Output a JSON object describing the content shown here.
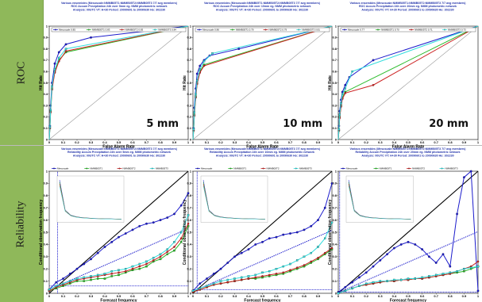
{
  "rows": [
    {
      "label": "ROC"
    },
    {
      "label": "Reliability"
    }
  ],
  "colors": {
    "sidebar": "#8fb85a",
    "title": "#2233aa",
    "series": [
      "#1c1ccc",
      "#2bbb2b",
      "#cc2222",
      "#33dddd"
    ]
  },
  "legend_series": [
    "Mesoscale",
    "NMMB05T1",
    "NMMB05T2",
    "NMMB05T3"
  ],
  "chart_data": [
    {
      "type": "line",
      "panel": "roc",
      "title_lines": [
        "Various ensembles  (Mesoscale:NMMB05T1:NMMB05T2:NMMB05T3 7/7 avg members)",
        "ROC  Accum Precipitation 24h over 5mm  eg. NMM photometric network",
        "Analysis: 00UTC  VT: H+30  Period: 20090601 to 20090630  Ho: 302230"
      ],
      "xlabel": "False Alarm Rate",
      "ylabel": "Hit Rate",
      "xlim": [
        0,
        1
      ],
      "ylim": [
        0,
        1
      ],
      "threshold_label": "5 mm",
      "legend": [
        "Mesoscale 0.85",
        "NMMB05T1 0.83",
        "NMMB05T2 0.83",
        "NMMB05T3 0.84"
      ],
      "series": [
        {
          "x": [
            0,
            0.005,
            0.01,
            0.02,
            0.04,
            0.07,
            0.12,
            0.3,
            1
          ],
          "y": [
            0,
            0.12,
            0.3,
            0.5,
            0.67,
            0.77,
            0.84,
            0.9,
            1
          ]
        },
        {
          "x": [
            0,
            0.005,
            0.01,
            0.02,
            0.04,
            0.07,
            0.12,
            1
          ],
          "y": [
            0,
            0.1,
            0.25,
            0.45,
            0.6,
            0.7,
            0.77,
            1
          ]
        },
        {
          "x": [
            0,
            0.005,
            0.01,
            0.02,
            0.04,
            0.07,
            0.12,
            1
          ],
          "y": [
            0,
            0.1,
            0.24,
            0.44,
            0.59,
            0.69,
            0.78,
            1
          ]
        },
        {
          "x": [
            0,
            0.005,
            0.01,
            0.02,
            0.04,
            0.07,
            0.12,
            1
          ],
          "y": [
            0,
            0.11,
            0.26,
            0.47,
            0.62,
            0.72,
            0.8,
            1
          ]
        }
      ]
    },
    {
      "type": "line",
      "panel": "roc",
      "title_lines": [
        "Various ensembles  (Mesoscale:NMMB05T1:NMMB05T2:NMMB05T3 7/7 avg members)",
        "ROC  Accum Precipitation 24h over 10mm  eg. NMM photometric network",
        "Analysis: 00UTC  VT: H+30  Period: 20090601 to 20090630  Ho: 302230"
      ],
      "xlabel": "False Alarm Rate",
      "ylabel": "Hit Rate",
      "xlim": [
        0,
        1
      ],
      "ylim": [
        0,
        1
      ],
      "threshold_label": "10 mm",
      "legend": [
        "Mesoscale 0.86",
        "NMMB05T1 0.79",
        "NMMB05T2 0.79",
        "NMMB05T3 0.81"
      ],
      "series": [
        {
          "x": [
            0,
            0.005,
            0.01,
            0.02,
            0.03,
            0.05,
            0.08,
            0.12,
            0.33,
            1
          ],
          "y": [
            0,
            0.1,
            0.28,
            0.45,
            0.58,
            0.65,
            0.7,
            0.74,
            0.8,
            1
          ]
        },
        {
          "x": [
            0,
            0.005,
            0.01,
            0.02,
            0.03,
            0.05,
            0.08,
            1
          ],
          "y": [
            0,
            0.08,
            0.22,
            0.38,
            0.5,
            0.6,
            0.66,
            1
          ]
        },
        {
          "x": [
            0,
            0.005,
            0.01,
            0.02,
            0.03,
            0.05,
            0.08,
            1
          ],
          "y": [
            0,
            0.08,
            0.21,
            0.37,
            0.49,
            0.59,
            0.65,
            1
          ]
        },
        {
          "x": [
            0,
            0.005,
            0.01,
            0.02,
            0.03,
            0.05,
            0.08,
            0.14,
            1
          ],
          "y": [
            0,
            0.09,
            0.24,
            0.4,
            0.52,
            0.62,
            0.69,
            0.76,
            1
          ]
        }
      ]
    },
    {
      "type": "line",
      "panel": "roc",
      "title_lines": [
        "Various ensembles  (Mesoscale:NMMB05T1:NMMB05T2:NMMB05T3 7/7 avg members)",
        "ROC  Accum Precipitation 24h over 20mm  eg. NMM photometric network",
        "Analysis: 00UTC  VT: H+30  Period: 20090601 to 20090630  Ho: 302230"
      ],
      "xlabel": "False Alarm Rate",
      "ylabel": "Hit Rate",
      "xlim": [
        0,
        1
      ],
      "ylim": [
        0,
        1
      ],
      "threshold_label": "20 mm",
      "legend": [
        "Mesoscale 0.77",
        "NMMB05T1 0.70",
        "NMMB05T2 0.71",
        "NMMB05T3 0.73"
      ],
      "series": [
        {
          "x": [
            0,
            0.005,
            0.01,
            0.02,
            0.03,
            0.05,
            0.08,
            0.25,
            1
          ],
          "y": [
            0,
            0.12,
            0.25,
            0.35,
            0.42,
            0.48,
            0.55,
            0.7,
            1
          ]
        },
        {
          "x": [
            0,
            0.005,
            0.01,
            0.02,
            0.03,
            0.05,
            1
          ],
          "y": [
            0,
            0.08,
            0.2,
            0.3,
            0.37,
            0.42,
            1
          ]
        },
        {
          "x": [
            0,
            0.005,
            0.01,
            0.02,
            0.03,
            0.05,
            0.25,
            1
          ],
          "y": [
            0,
            0.08,
            0.19,
            0.29,
            0.36,
            0.41,
            0.48,
            1
          ]
        },
        {
          "x": [
            0,
            0.005,
            0.01,
            0.02,
            0.03,
            0.05,
            0.1,
            1
          ],
          "y": [
            0,
            0.09,
            0.22,
            0.32,
            0.4,
            0.45,
            0.6,
            1
          ]
        }
      ]
    },
    {
      "type": "line",
      "panel": "rel",
      "title_lines": [
        "Various ensembles  (Mesoscale:NMMB05T1:NMMB05T2:NMMB05T3 7/7 avg members)",
        "Reliability  Accum Precipitation 24h over 5mm  eg. NMM photometric network",
        "Analysis: 00UTC  VT: H+30  Period: 20090601 to 20090630  Ho: 302230"
      ],
      "xlabel": "Forecast frequency",
      "ylabel": "Conditional observation frequency",
      "xlim": [
        0,
        1
      ],
      "ylim": [
        0,
        1
      ],
      "climatology": 0.06,
      "inset": true,
      "series": [
        {
          "x": [
            0,
            0.05,
            0.1,
            0.15,
            0.2,
            0.25,
            0.3,
            0.35,
            0.4,
            0.45,
            0.5,
            0.55,
            0.6,
            0.65,
            0.7,
            0.75,
            0.8,
            0.85,
            0.9,
            0.95,
            1
          ],
          "y": [
            0.03,
            0.09,
            0.12,
            0.16,
            0.2,
            0.24,
            0.28,
            0.33,
            0.38,
            0.42,
            0.46,
            0.49,
            0.52,
            0.55,
            0.57,
            0.58,
            0.6,
            0.62,
            0.65,
            0.72,
            0.82
          ]
        },
        {
          "x": [
            0,
            0.05,
            0.1,
            0.15,
            0.2,
            0.25,
            0.3,
            0.35,
            0.4,
            0.45,
            0.5,
            0.55,
            0.6,
            0.65,
            0.7,
            0.75,
            0.8,
            0.85,
            0.9,
            0.95,
            1
          ],
          "y": [
            0.02,
            0.04,
            0.06,
            0.08,
            0.1,
            0.1,
            0.11,
            0.12,
            0.12,
            0.14,
            0.15,
            0.17,
            0.19,
            0.2,
            0.22,
            0.26,
            0.28,
            0.32,
            0.35,
            0.42,
            0.55
          ]
        },
        {
          "x": [
            0,
            0.05,
            0.1,
            0.15,
            0.2,
            0.25,
            0.3,
            0.35,
            0.4,
            0.45,
            0.5,
            0.55,
            0.6,
            0.65,
            0.7,
            0.75,
            0.8,
            0.85,
            0.9,
            0.95,
            1
          ],
          "y": [
            0.02,
            0.05,
            0.07,
            0.09,
            0.11,
            0.12,
            0.13,
            0.14,
            0.15,
            0.16,
            0.17,
            0.18,
            0.2,
            0.22,
            0.24,
            0.27,
            0.3,
            0.34,
            0.38,
            0.45,
            0.57
          ]
        },
        {
          "x": [
            0,
            0.05,
            0.1,
            0.15,
            0.2,
            0.25,
            0.3,
            0.35,
            0.4,
            0.45,
            0.5,
            0.55,
            0.6,
            0.65,
            0.7,
            0.75,
            0.8,
            0.85,
            0.9,
            0.95,
            1
          ],
          "y": [
            0.03,
            0.06,
            0.08,
            0.1,
            0.12,
            0.13,
            0.14,
            0.15,
            0.16,
            0.18,
            0.19,
            0.2,
            0.22,
            0.24,
            0.26,
            0.29,
            0.32,
            0.36,
            0.42,
            0.5,
            0.64
          ]
        }
      ]
    },
    {
      "type": "line",
      "panel": "rel",
      "title_lines": [
        "Various ensembles  (Mesoscale:NMMB05T1:NMMB05T2:NMMB05T3 7/7 avg members)",
        "Reliability  Accum Precipitation 24h over 10mm  eg. NMM photometric network",
        "Analysis: 00UTC  VT: H+30  Period: 20090601 to 20090630  Ho: 302230"
      ],
      "xlabel": "Forecast frequency",
      "ylabel": "Conditional observation frequency",
      "xlim": [
        0,
        1
      ],
      "ylim": [
        0,
        1
      ],
      "climatology": 0.03,
      "inset": true,
      "series": [
        {
          "x": [
            0,
            0.05,
            0.1,
            0.15,
            0.2,
            0.25,
            0.3,
            0.35,
            0.4,
            0.45,
            0.5,
            0.55,
            0.6,
            0.65,
            0.7,
            0.75,
            0.8,
            0.85,
            0.9,
            0.95,
            1
          ],
          "y": [
            0.02,
            0.08,
            0.12,
            0.16,
            0.2,
            0.25,
            0.3,
            0.33,
            0.36,
            0.4,
            0.42,
            0.45,
            0.46,
            0.48,
            0.49,
            0.5,
            0.52,
            0.55,
            0.6,
            0.7,
            0.9
          ]
        },
        {
          "x": [
            0,
            0.05,
            0.1,
            0.15,
            0.2,
            0.25,
            0.3,
            0.35,
            0.4,
            0.45,
            0.5,
            0.55,
            0.6,
            0.65,
            0.7,
            0.75,
            0.8,
            0.85,
            0.9,
            0.95,
            1
          ],
          "y": [
            0.01,
            0.03,
            0.05,
            0.07,
            0.08,
            0.09,
            0.1,
            0.11,
            0.12,
            0.12,
            0.13,
            0.14,
            0.15,
            0.16,
            0.18,
            0.2,
            0.22,
            0.25,
            0.28,
            0.32,
            0.36
          ]
        },
        {
          "x": [
            0,
            0.05,
            0.1,
            0.15,
            0.2,
            0.25,
            0.3,
            0.35,
            0.4,
            0.45,
            0.5,
            0.55,
            0.6,
            0.65,
            0.7,
            0.75,
            0.8,
            0.85,
            0.9,
            0.95,
            1
          ],
          "y": [
            0.01,
            0.03,
            0.05,
            0.07,
            0.08,
            0.09,
            0.1,
            0.11,
            0.12,
            0.13,
            0.14,
            0.15,
            0.16,
            0.17,
            0.19,
            0.21,
            0.23,
            0.26,
            0.29,
            0.33,
            0.37
          ]
        },
        {
          "x": [
            0,
            0.05,
            0.1,
            0.15,
            0.2,
            0.25,
            0.3,
            0.35,
            0.4,
            0.45,
            0.5,
            0.55,
            0.6,
            0.65,
            0.7,
            0.75,
            0.8,
            0.85,
            0.9,
            0.95,
            1
          ],
          "y": [
            0.02,
            0.04,
            0.06,
            0.08,
            0.1,
            0.11,
            0.12,
            0.13,
            0.14,
            0.15,
            0.17,
            0.18,
            0.2,
            0.22,
            0.24,
            0.27,
            0.3,
            0.33,
            0.38,
            0.45,
            0.58
          ]
        }
      ]
    },
    {
      "type": "line",
      "panel": "rel",
      "title_lines": [
        "Various ensembles  (Mesoscale:NMMB05T1:NMMB05T2:NMMB05T3 7/7 avg members)",
        "Reliability  Accum Precipitation 24h over 20mm  eg. NMM photometric network",
        "Analysis: 00UTC  VT: H+30  Period: 20090601 to 20090630  Ho: 302230"
      ],
      "xlabel": "Forecast frequency",
      "ylabel": "Conditional observation frequency",
      "xlim": [
        0,
        1
      ],
      "ylim": [
        0,
        1
      ],
      "climatology": 0.01,
      "inset": true,
      "series": [
        {
          "x": [
            0,
            0.05,
            0.1,
            0.15,
            0.2,
            0.25,
            0.3,
            0.35,
            0.4,
            0.45,
            0.5,
            0.55,
            0.6,
            0.65,
            0.7,
            0.75,
            0.8,
            0.85,
            0.9,
            0.95,
            1
          ],
          "y": [
            0.01,
            0.05,
            0.09,
            0.13,
            0.17,
            0.22,
            0.27,
            0.32,
            0.37,
            0.4,
            0.42,
            0.4,
            0.36,
            0.3,
            0.25,
            0.32,
            0.22,
            0.65,
            0.95,
            1.0,
            0.02
          ]
        },
        {
          "x": [
            0,
            0.05,
            0.1,
            0.15,
            0.2,
            0.25,
            0.3,
            0.35,
            0.4,
            0.45,
            0.5,
            0.55,
            0.6,
            0.65,
            0.7,
            0.75,
            0.8,
            0.85,
            0.9,
            0.95,
            1
          ],
          "y": [
            0.0,
            0.02,
            0.04,
            0.06,
            0.07,
            0.08,
            0.09,
            0.1,
            0.1,
            0.11,
            0.11,
            0.12,
            0.12,
            0.13,
            0.14,
            0.15,
            0.16,
            0.17,
            0.18,
            0.2,
            0.22
          ]
        },
        {
          "x": [
            0,
            0.05,
            0.1,
            0.15,
            0.2,
            0.25,
            0.3,
            0.35,
            0.4,
            0.45,
            0.5,
            0.55,
            0.6,
            0.65,
            0.7,
            0.75,
            0.8,
            0.85,
            0.9,
            0.95,
            1
          ],
          "y": [
            0.0,
            0.02,
            0.04,
            0.06,
            0.07,
            0.08,
            0.09,
            0.1,
            0.1,
            0.11,
            0.11,
            0.12,
            0.12,
            0.13,
            0.14,
            0.15,
            0.16,
            0.18,
            0.2,
            0.22,
            0.26
          ]
        },
        {
          "x": [
            0,
            0.05,
            0.1,
            0.15,
            0.2,
            0.25,
            0.3,
            0.35,
            0.4,
            0.45,
            0.5,
            0.55,
            0.6,
            0.65,
            0.7,
            0.75,
            0.8,
            0.85,
            0.9,
            0.95,
            1
          ],
          "y": [
            0.0,
            0.02,
            0.04,
            0.06,
            0.08,
            0.09,
            0.1,
            0.1,
            0.11,
            0.11,
            0.12,
            0.12,
            0.13,
            0.14,
            0.15,
            0.16,
            0.17,
            0.18,
            0.2,
            0.21,
            0.22
          ]
        }
      ]
    }
  ]
}
